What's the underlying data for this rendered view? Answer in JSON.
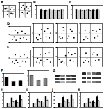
{
  "chart_data": [
    {
      "type": "scatter",
      "title": "A",
      "color": "#000000",
      "x": [
        10,
        18,
        25,
        30,
        55,
        62,
        70,
        78,
        35,
        85
      ],
      "values": [
        70,
        60,
        75,
        20,
        65,
        30,
        80,
        25,
        50,
        60
      ],
      "gates": [
        45,
        45
      ],
      "xlim": [
        0,
        100
      ],
      "ylim": [
        0,
        100
      ],
      "xticks": [
        0,
        50,
        100
      ],
      "yticks": [
        0,
        50,
        100
      ],
      "tick_labels": false
    },
    {
      "type": "scatter",
      "color": "#000000",
      "x": [
        15,
        22,
        28,
        40,
        58,
        65,
        72,
        80,
        33,
        88
      ],
      "values": [
        65,
        30,
        80,
        55,
        70,
        25,
        60,
        35,
        20,
        75
      ],
      "gates": [
        45,
        45
      ],
      "xlim": [
        0,
        100
      ],
      "ylim": [
        0,
        100
      ],
      "xticks": [
        0,
        50,
        100
      ],
      "yticks": [
        0,
        50,
        100
      ],
      "tick_labels": false
    },
    {
      "type": "bar",
      "title": "B",
      "categories": [
        null,
        null,
        null,
        null,
        null,
        null
      ],
      "series": [
        {
          "color": "#000000",
          "values": [
            100,
            95,
            102,
            98,
            97,
            101
          ],
          "errors": [
            8,
            7,
            9,
            6,
            8,
            7
          ]
        },
        {
          "color": "#ffffff",
          "values": [
            92,
            88,
            96,
            90,
            85,
            94
          ],
          "errors": [
            7,
            9,
            8,
            7,
            6,
            8
          ]
        }
      ],
      "ylim": [
        0,
        150
      ],
      "yticks": [
        0,
        50,
        100,
        150
      ],
      "tick_labels": false
    },
    {
      "type": "bar",
      "title": "C",
      "categories": [
        null,
        null,
        null,
        null,
        null,
        null
      ],
      "series": [
        {
          "color": "#000000",
          "values": [
            100,
            98,
            97,
            103,
            99,
            100
          ],
          "errors": [
            6,
            8,
            7,
            9,
            6,
            7
          ]
        },
        {
          "color": "#ffffff",
          "values": [
            95,
            90,
            93,
            88,
            91,
            96
          ],
          "errors": [
            8,
            6,
            9,
            7,
            8,
            6
          ]
        }
      ],
      "ylim": [
        0,
        150
      ],
      "yticks": [
        0,
        50,
        100,
        150
      ],
      "tick_labels": false
    },
    {
      "type": "scatter",
      "title": "D",
      "color": "#000000",
      "x": [
        12,
        20,
        30,
        38,
        52,
        60,
        68,
        75,
        82,
        25
      ],
      "values": [
        20,
        35,
        15,
        60,
        25,
        70,
        30,
        55,
        20,
        75
      ],
      "gates": [
        45,
        45
      ],
      "xlim": [
        0,
        100
      ],
      "ylim": [
        0,
        100
      ],
      "xticks": [
        0,
        50,
        100
      ],
      "yticks": [
        0,
        50,
        100
      ],
      "tick_labels": false
    },
    {
      "type": "scatter",
      "color": "#000000",
      "x": [
        15,
        22,
        28,
        35,
        55,
        63,
        70,
        78,
        85,
        40
      ],
      "values": [
        25,
        15,
        40,
        20,
        60,
        30,
        75,
        25,
        50,
        70
      ],
      "gates": [
        45,
        45
      ],
      "xlim": [
        0,
        100
      ],
      "ylim": [
        0,
        100
      ],
      "xticks": [
        0,
        50,
        100
      ],
      "yticks": [
        0,
        50,
        100
      ],
      "tick_labels": false
    },
    {
      "type": "scatter",
      "color": "#000000",
      "x": [
        10,
        18,
        26,
        34,
        50,
        58,
        66,
        74,
        84,
        30
      ],
      "values": [
        30,
        20,
        25,
        65,
        20,
        35,
        70,
        60,
        25,
        80
      ],
      "gates": [
        45,
        45
      ],
      "xlim": [
        0,
        100
      ],
      "ylim": [
        0,
        100
      ],
      "xticks": [
        0,
        50,
        100
      ],
      "yticks": [
        0,
        50,
        100
      ],
      "tick_labels": false
    },
    {
      "type": "scatter",
      "color": "#000000",
      "x": [
        14,
        24,
        32,
        40,
        56,
        64,
        72,
        80,
        88,
        20
      ],
      "values": [
        15,
        30,
        20,
        55,
        65,
        25,
        60,
        35,
        70,
        65
      ],
      "gates": [
        45,
        45
      ],
      "xlim": [
        0,
        100
      ],
      "ylim": [
        0,
        100
      ],
      "xticks": [
        0,
        50,
        100
      ],
      "yticks": [
        0,
        50,
        100
      ],
      "tick_labels": false
    },
    {
      "type": "scatter",
      "title": "E",
      "color": "#000000",
      "x": [
        12,
        22,
        30,
        38,
        54,
        62,
        70,
        78,
        86,
        26
      ],
      "values": [
        25,
        15,
        35,
        20,
        60,
        30,
        70,
        25,
        55,
        70
      ],
      "gates": [
        45,
        45
      ],
      "xlim": [
        0,
        100
      ],
      "ylim": [
        0,
        100
      ],
      "xticks": [
        0,
        50,
        100
      ],
      "yticks": [
        0,
        50,
        100
      ],
      "tick_labels": false
    },
    {
      "type": "scatter",
      "color": "#000000",
      "x": [
        16,
        20,
        28,
        36,
        52,
        60,
        68,
        76,
        84,
        32
      ],
      "values": [
        20,
        40,
        15,
        30,
        25,
        65,
        35,
        70,
        20,
        60
      ],
      "gates": [
        45,
        45
      ],
      "xlim": [
        0,
        100
      ],
      "ylim": [
        0,
        100
      ],
      "xticks": [
        0,
        50,
        100
      ],
      "yticks": [
        0,
        50,
        100
      ],
      "tick_labels": false
    },
    {
      "type": "scatter",
      "color": "#000000",
      "x": [
        10,
        20,
        27,
        35,
        57,
        65,
        73,
        80,
        88,
        42
      ],
      "values": [
        35,
        20,
        25,
        15,
        70,
        30,
        60,
        25,
        65,
        55
      ],
      "gates": [
        45,
        45
      ],
      "xlim": [
        0,
        100
      ],
      "ylim": [
        0,
        100
      ],
      "xticks": [
        0,
        50,
        100
      ],
      "yticks": [
        0,
        50,
        100
      ],
      "tick_labels": false
    },
    {
      "type": "scatter",
      "color": "#000000",
      "x": [
        13,
        21,
        29,
        37,
        53,
        61,
        69,
        77,
        85,
        24
      ],
      "values": [
        18,
        28,
        38,
        22,
        62,
        72,
        28,
        58,
        32,
        68
      ],
      "gates": [
        45,
        45
      ],
      "xlim": [
        0,
        100
      ],
      "ylim": [
        0,
        100
      ],
      "xticks": [
        0,
        50,
        100
      ],
      "yticks": [
        0,
        50,
        100
      ],
      "tick_labels": false
    },
    {
      "type": "bar",
      "title": "F",
      "categories": [
        null,
        null,
        null
      ],
      "series": [
        {
          "color": "#000000",
          "values": [
            100,
            45,
            60
          ],
          "errors": [
            8,
            6,
            7
          ]
        }
      ],
      "ylim": [
        0,
        150
      ],
      "yticks": [
        0,
        50,
        100,
        150
      ],
      "tick_labels": false
    },
    {
      "type": "bar",
      "categories": [
        null,
        null,
        null
      ],
      "series": [
        {
          "color": "#808080",
          "values": [
            100,
            50,
            70
          ],
          "errors": [
            7,
            5,
            8
          ]
        }
      ],
      "ylim": [
        0,
        150
      ],
      "yticks": [
        0,
        50,
        100,
        150
      ],
      "tick_labels": false
    },
    {
      "type": "blot",
      "title": "G",
      "bands": [
        [
          0.9,
          0.5,
          0.7,
          0.8
        ],
        [
          0.8,
          0.8,
          0.8,
          0.8
        ],
        [
          0.6,
          0.3,
          0.4,
          0.5
        ]
      ],
      "color_range": [
        0,
        1
      ]
    },
    {
      "type": "blot",
      "bands": [
        [
          0.85,
          0.4,
          0.6,
          0.75
        ],
        [
          0.8,
          0.8,
          0.8,
          0.8
        ],
        [
          0.7,
          0.35,
          0.5,
          0.6
        ]
      ],
      "color_range": [
        0,
        1
      ]
    },
    {
      "type": "bar",
      "title": "H",
      "categories": [
        null,
        null,
        null,
        null
      ],
      "series": [
        {
          "color": "#000000",
          "values": [
            1,
            2.5,
            1.8,
            3.2
          ],
          "errors": [
            0.1,
            0.3,
            0.2,
            0.3
          ]
        },
        {
          "color": "#ffffff",
          "values": [
            1,
            1.5,
            1.2,
            2
          ],
          "errors": [
            0.1,
            0.2,
            0.15,
            0.2
          ]
        }
      ],
      "ylim": [
        0,
        4
      ],
      "yticks": [
        0,
        1,
        2,
        3,
        4
      ],
      "tick_labels": false
    },
    {
      "type": "bar",
      "title": "I",
      "categories": [
        null,
        null,
        null,
        null
      ],
      "series": [
        {
          "color": "#000000",
          "values": [
            1,
            2.2,
            1.6,
            3
          ],
          "errors": [
            0.1,
            0.25,
            0.2,
            0.3
          ]
        },
        {
          "color": "#ffffff",
          "values": [
            1,
            1.4,
            1.1,
            1.8
          ],
          "errors": [
            0.1,
            0.2,
            0.1,
            0.2
          ]
        }
      ],
      "ylim": [
        0,
        4
      ],
      "yticks": [
        0,
        1,
        2,
        3,
        4
      ],
      "tick_labels": false
    },
    {
      "type": "bar",
      "title": "J",
      "categories": [
        null,
        null,
        null,
        null
      ],
      "series": [
        {
          "color": "#000000",
          "values": [
            1,
            2.8,
            2,
            3.4
          ],
          "errors": [
            0.1,
            0.3,
            0.2,
            0.3
          ]
        },
        {
          "color": "#ffffff",
          "values": [
            1,
            1.6,
            1.3,
            2.1
          ],
          "errors": [
            0.1,
            0.2,
            0.15,
            0.2
          ]
        }
      ],
      "ylim": [
        0,
        4
      ],
      "yticks": [
        0,
        1,
        2,
        3,
        4
      ],
      "tick_labels": false
    },
    {
      "type": "bar",
      "title": "K",
      "categories": [
        null,
        null,
        null,
        null
      ],
      "series": [
        {
          "color": "#000000",
          "values": [
            1,
            2.4,
            1.7,
            2.9
          ],
          "errors": [
            0.1,
            0.25,
            0.2,
            0.3
          ]
        },
        {
          "color": "#ffffff",
          "values": [
            1,
            1.3,
            1.2,
            1.7
          ],
          "errors": [
            0.1,
            0.15,
            0.1,
            0.2
          ]
        }
      ],
      "ylim": [
        0,
        4
      ],
      "yticks": [
        0,
        1,
        2,
        3,
        4
      ],
      "tick_labels": false
    }
  ]
}
